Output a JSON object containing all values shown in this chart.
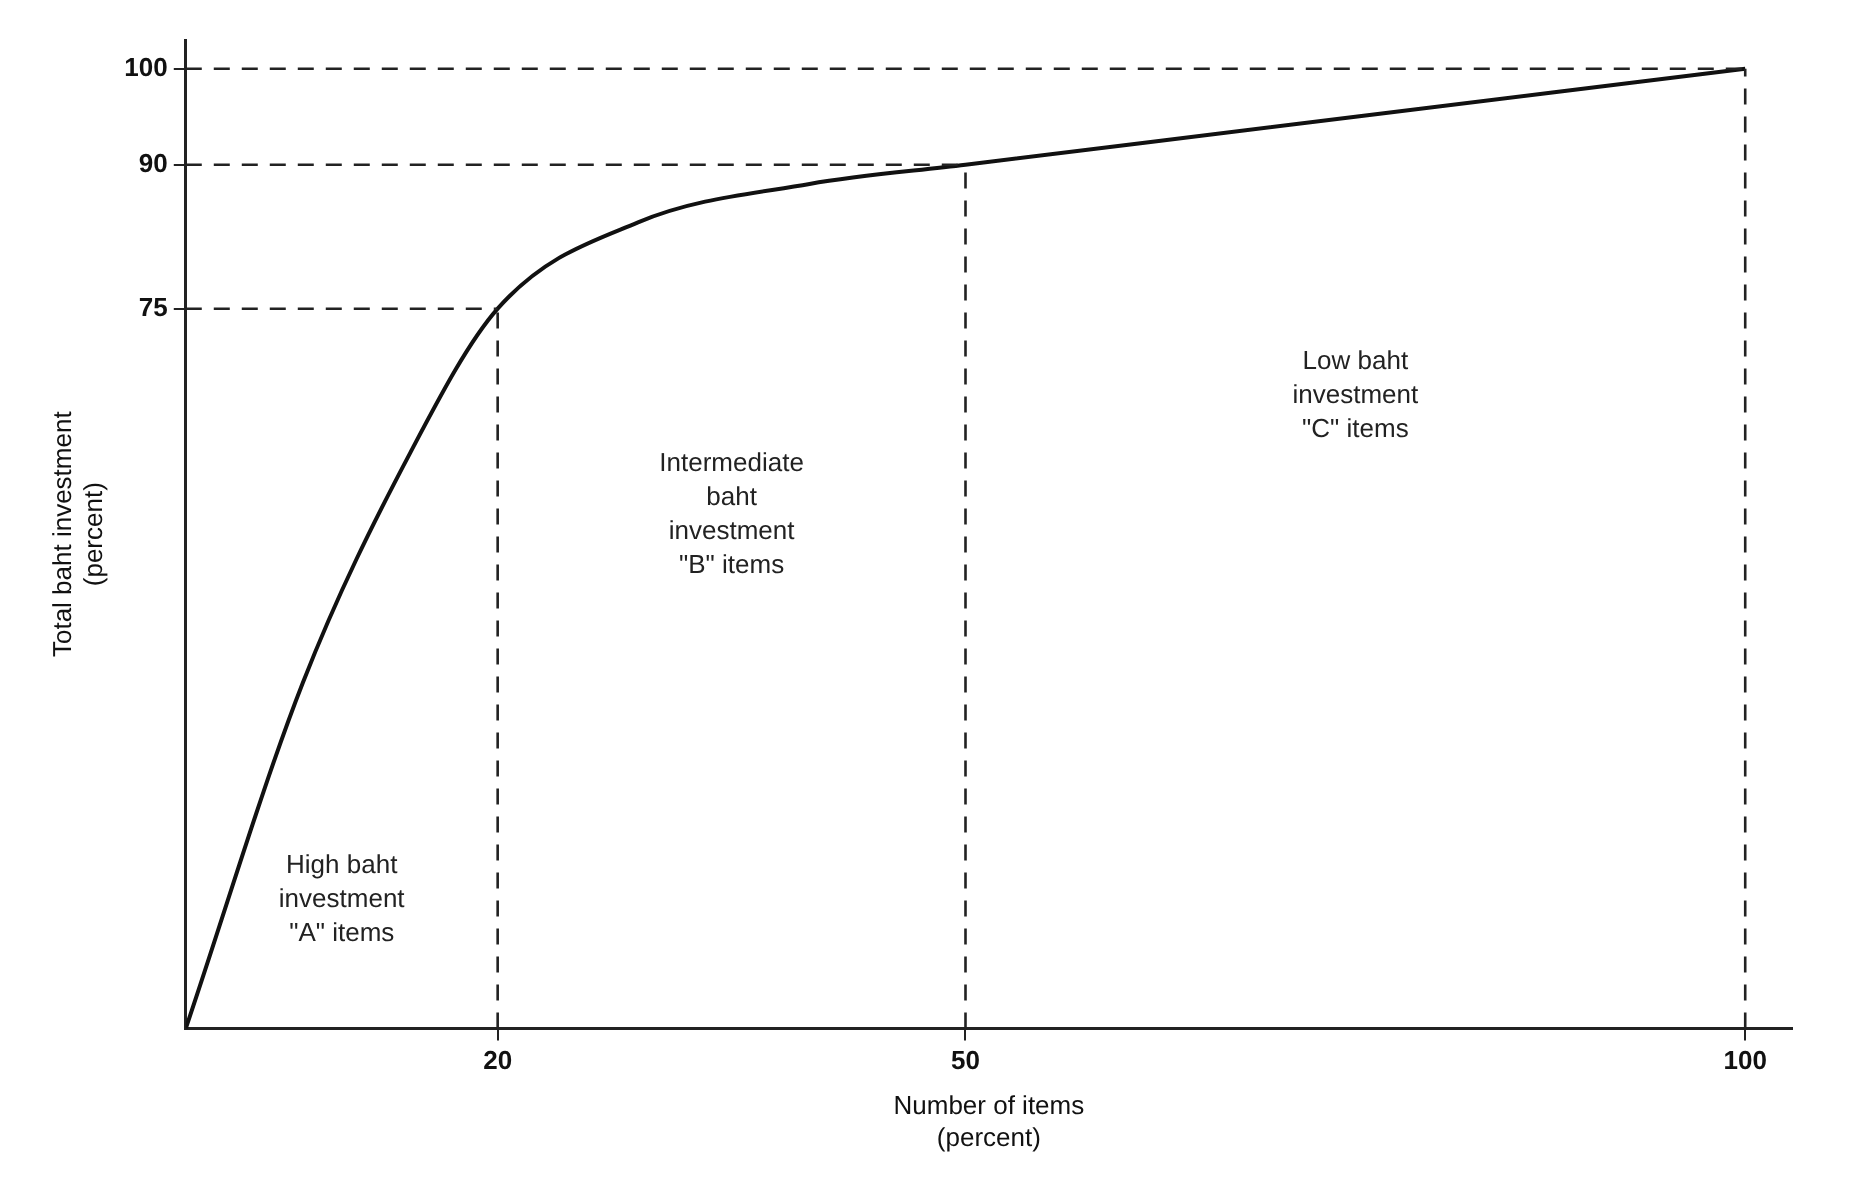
{
  "chart_data": {
    "type": "line",
    "xlabel": "Number of items\n(percent)",
    "ylabel": "Total baht investment\n(percent)",
    "series": [
      {
        "color": "#111111",
        "x": [
          0,
          7.5,
          14.4,
          20,
          29,
          40,
          50,
          75,
          100
        ],
        "values": [
          0,
          36,
          60,
          75,
          84,
          88,
          90,
          95,
          100
        ]
      }
    ],
    "xlim": [
      0,
      103
    ],
    "ylim": [
      0,
      103
    ],
    "xticks": [
      20,
      50,
      100
    ],
    "yticks": [
      75,
      90,
      100
    ],
    "grid": false,
    "legend": false,
    "marker": "none",
    "line_style": "solid",
    "ref_lines": [
      {
        "axis": "y",
        "value": 75,
        "line_style": "dashed"
      },
      {
        "axis": "y",
        "value": 90,
        "line_style": "dashed"
      },
      {
        "axis": "y",
        "value": 100,
        "line_style": "dashed"
      },
      {
        "axis": "x",
        "value": 20,
        "line_style": "dashed"
      },
      {
        "axis": "x",
        "value": 50,
        "line_style": "dashed"
      },
      {
        "axis": "x",
        "value": 100,
        "line_style": "dashed"
      }
    ],
    "annotations": [
      "High baht\ninvestment\n\"A\" items",
      "Intermediate\nbaht\ninvestment\n\"B\" items",
      "Low baht\ninvestment\n\"C\" items"
    ]
  }
}
